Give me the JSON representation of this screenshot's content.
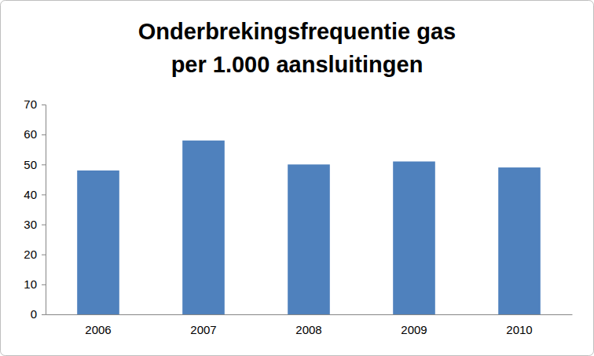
{
  "chart_data": {
    "type": "bar",
    "title": "Onderbrekingsfrequentie gas per 1.000 aansluitingen",
    "categories": [
      "2006",
      "2007",
      "2008",
      "2009",
      "2010"
    ],
    "values": [
      48,
      58,
      50,
      51,
      49
    ],
    "color": "#4f81bd",
    "ylim": [
      0,
      70
    ],
    "yticks": [
      0,
      10,
      20,
      30,
      40,
      50,
      60,
      70
    ],
    "grid": false
  }
}
